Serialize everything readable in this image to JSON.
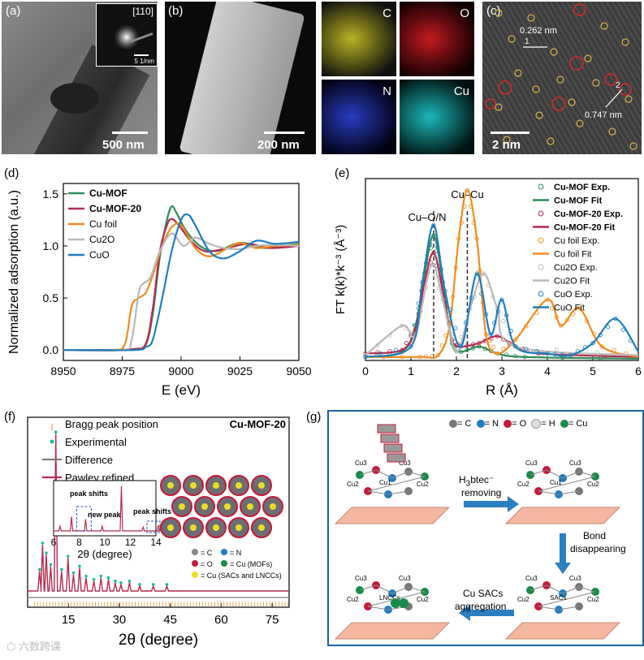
{
  "panels": {
    "a": {
      "label": "(a)",
      "inset_label": "[110]",
      "inset_scale": "5 1/nm",
      "scale": "500 nm"
    },
    "b": {
      "label": "(b)",
      "scale": "200 nm",
      "maps": [
        {
          "name": "C",
          "color": "#d4cf2a"
        },
        {
          "name": "O",
          "color": "#c8161b"
        },
        {
          "name": "N",
          "color": "#2635b8"
        },
        {
          "name": "Cu",
          "color": "#17b5b5"
        }
      ]
    },
    "c": {
      "label": "(c)",
      "scale": "2 nm",
      "d1": "0.262 nm",
      "d2": "0.747 nm",
      "m1": "1",
      "m2": "2"
    },
    "d": {
      "label": "(d)"
    },
    "e": {
      "label": "(e)",
      "ann1": "Cu–O/N",
      "ann2": "Cu–Cu"
    },
    "f": {
      "label": "(f)",
      "title": "Cu-MOF-20",
      "legend": [
        "Bragg peak position",
        "Experimental",
        "Difference",
        "Pawley refined"
      ],
      "inset_notes": [
        "peak shifts",
        "new peak",
        "peak shifts"
      ],
      "inset_ticks": [
        "6",
        "8",
        "10",
        "12",
        "14"
      ],
      "inset_xlabel": "2θ (degree)",
      "struct_legend": [
        "= C",
        "= N",
        "= O",
        "= Cu (MOFs)",
        "= Cu (SACs and LNCCs)"
      ]
    },
    "g": {
      "label": "(g)",
      "legend": [
        "= C",
        "= N",
        "= O",
        "= H",
        "= Cu"
      ],
      "step1": "H3btec⁻ removing",
      "step1_a": "H",
      "step1_b": "3",
      "step1_c": "btec⁻",
      "step1_d": "removing",
      "step2_a": "Bond",
      "step2_b": "disappearing",
      "step3_a": "Cu SACs",
      "step3_b": "aggregation",
      "site_labels": [
        "Cu3",
        "Cu2",
        "Cu1",
        "SACs",
        "LNCCs",
        "Cu"
      ]
    }
  },
  "chart_data": [
    {
      "id": "d",
      "type": "line",
      "xlabel": "E (eV)",
      "ylabel": "Normalized adsorption (a.u.)",
      "xlim": [
        8950,
        9050
      ],
      "ylim": [
        -0.1,
        1.6
      ],
      "xticks": [
        "8950",
        "8975",
        "9000",
        "9025",
        "9050"
      ],
      "yticks": [
        "0.0",
        "0.5",
        "1.0",
        "1.5"
      ],
      "series": [
        {
          "name": "Cu-MOF",
          "color": "#2e8b57",
          "x": [
            8950,
            8970,
            8980,
            8985,
            8988,
            8991,
            8994,
            8996,
            8998,
            9002,
            9008,
            9015,
            9025,
            9035,
            9042,
            9050
          ],
          "y": [
            0,
            0,
            0.01,
            0.05,
            0.35,
            0.9,
            1.25,
            1.38,
            1.32,
            1.15,
            1.0,
            0.95,
            1.03,
            0.98,
            1.0,
            1.02
          ]
        },
        {
          "name": "Cu-MOF-20",
          "color": "#b52b4f",
          "x": [
            8950,
            8970,
            8980,
            8985,
            8988,
            8991,
            8994,
            8996,
            8999,
            9004,
            9010,
            9018,
            9028,
            9038,
            9050
          ],
          "y": [
            0,
            0,
            0.01,
            0.06,
            0.4,
            0.95,
            1.2,
            1.26,
            1.2,
            1.05,
            0.95,
            0.97,
            1.02,
            0.98,
            1.0
          ]
        },
        {
          "name": "Cu foil",
          "color": "#f28b1c",
          "x": [
            8950,
            8970,
            8976,
            8979,
            8982,
            8985,
            8988,
            8992,
            8996,
            9000,
            9006,
            9012,
            9020,
            9025,
            9032,
            9040,
            9050
          ],
          "y": [
            0,
            0,
            0.05,
            0.42,
            0.5,
            0.55,
            0.72,
            1.0,
            1.18,
            1.2,
            0.98,
            0.9,
            0.98,
            1.03,
            0.98,
            1.0,
            1.01
          ]
        },
        {
          "name": "Cu2O",
          "color": "#b9b9b9",
          "x": [
            8950,
            8975,
            8979,
            8982,
            8984,
            8987,
            8991,
            8996,
            9001,
            9006,
            9012,
            9018,
            9025,
            9032,
            9040,
            9050
          ],
          "y": [
            0,
            0,
            0.1,
            0.55,
            0.64,
            0.7,
            0.95,
            1.12,
            1.0,
            1.08,
            1.02,
            0.98,
            0.97,
            1.0,
            1.01,
            1.0
          ]
        },
        {
          "name": "CuO",
          "color": "#1f7ec0",
          "x": [
            8950,
            8980,
            8985,
            8988,
            8992,
            8996,
            9000,
            9003,
            9006,
            9012,
            9018,
            9025,
            9032,
            9040,
            9050
          ],
          "y": [
            0,
            0,
            0.03,
            0.1,
            0.5,
            0.95,
            1.25,
            1.3,
            1.2,
            0.95,
            0.88,
            0.95,
            1.05,
            1.02,
            1.04
          ]
        }
      ]
    },
    {
      "id": "e",
      "type": "line",
      "xlabel": "R (Å)",
      "ylabel": "FT k(k)*k⁻³ (Å⁻³)",
      "xlim": [
        0,
        6
      ],
      "ylim": [
        0,
        1.0
      ],
      "xticks": [
        "0",
        "1",
        "2",
        "3",
        "4",
        "5",
        "6"
      ],
      "vlines": [
        1.5,
        2.24
      ],
      "legend": [
        "Cu-MOF Exp.",
        "Cu-MOF Fit",
        "Cu-MOF-20 Exp.",
        "Cu-MOF-20 Fit",
        "Cu foil Exp.",
        "Cu foil Fit",
        "Cu2O Exp.",
        "Cu2O Fit",
        "CuO Exp.",
        "CuO Fit"
      ],
      "series": [
        {
          "name": "Cu-MOF",
          "color": "#2e8b57",
          "x": [
            0,
            0.8,
            1.1,
            1.3,
            1.5,
            1.7,
            1.9,
            2.1,
            2.5,
            2.9,
            3.5,
            6
          ],
          "y": [
            0.02,
            0.05,
            0.2,
            0.5,
            0.72,
            0.45,
            0.1,
            0.05,
            0.08,
            0.04,
            0.02,
            0.01
          ]
        },
        {
          "name": "Cu-MOF-20",
          "color": "#b52b4f",
          "x": [
            0,
            0.8,
            1.1,
            1.3,
            1.5,
            1.7,
            1.9,
            2.1,
            2.5,
            2.9,
            3.3,
            3.8,
            6
          ],
          "y": [
            0.04,
            0.06,
            0.18,
            0.45,
            0.62,
            0.4,
            0.12,
            0.08,
            0.1,
            0.14,
            0.08,
            0.04,
            0.02
          ]
        },
        {
          "name": "Cu foil",
          "color": "#f28b1c",
          "x": [
            0,
            1.2,
            1.6,
            1.85,
            2.05,
            2.24,
            2.45,
            2.65,
            2.9,
            3.3,
            4.0,
            4.3,
            4.7,
            5.2,
            6
          ],
          "y": [
            0.02,
            0.02,
            0.03,
            0.2,
            0.7,
            0.98,
            0.7,
            0.15,
            0.04,
            0.12,
            0.35,
            0.2,
            0.3,
            0.08,
            0.02
          ]
        },
        {
          "name": "Cu2O",
          "color": "#b9b9b9",
          "x": [
            0,
            0.8,
            1.1,
            1.45,
            1.7,
            2.0,
            2.3,
            2.6,
            2.9,
            3.3,
            6
          ],
          "y": [
            0.03,
            0.2,
            0.15,
            0.55,
            0.35,
            0.05,
            0.3,
            0.5,
            0.3,
            0.08,
            0.03
          ]
        },
        {
          "name": "CuO",
          "color": "#1f7ec0",
          "x": [
            0,
            1.0,
            1.25,
            1.5,
            1.75,
            2.1,
            2.45,
            2.75,
            3.0,
            3.3,
            4.0,
            4.5,
            5.0,
            5.5,
            6
          ],
          "y": [
            0.02,
            0.08,
            0.45,
            0.78,
            0.4,
            0.08,
            0.5,
            0.15,
            0.35,
            0.08,
            0.04,
            0.03,
            0.1,
            0.24,
            0.05
          ]
        }
      ]
    },
    {
      "id": "f",
      "type": "line",
      "xlabel": "2θ (degree)",
      "ylabel": "",
      "xlim": [
        3,
        80
      ],
      "ylim": [
        -0.1,
        1.0
      ],
      "xticks": [
        "15",
        "30",
        "45",
        "60",
        "75"
      ],
      "peaks": [
        6.5,
        7.4,
        8.5,
        9.8,
        11.3,
        13,
        14.9,
        16.5,
        18.3,
        20.2,
        22.5,
        24.6,
        26.8,
        28.8,
        30.5,
        33,
        36,
        40,
        44
      ],
      "peak_heights": [
        0.12,
        0.28,
        0.22,
        0.15,
        0.95,
        0.12,
        0.2,
        0.1,
        0.14,
        0.08,
        0.06,
        0.08,
        0.07,
        0.05,
        0.04,
        0.05,
        0.03,
        0.03,
        0.03
      ]
    }
  ]
}
